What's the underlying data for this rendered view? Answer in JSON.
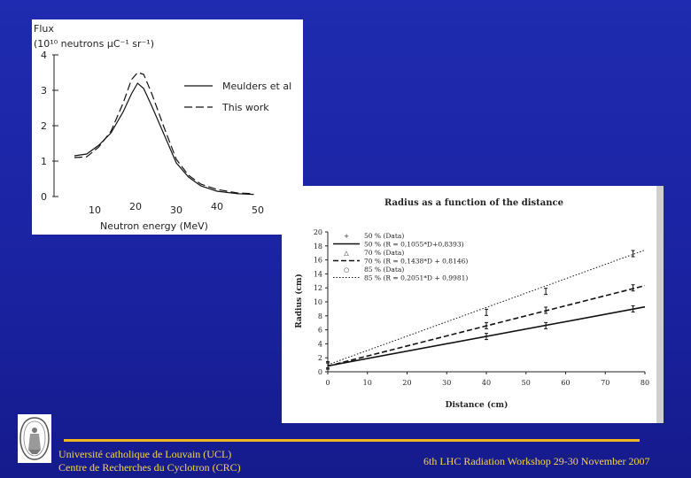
{
  "chart_data": [
    {
      "type": "line",
      "ylabel": "Flux",
      "ylabel_unit": "(10¹⁰ neutrons µC⁻¹ sr⁻¹)",
      "xlabel": "Neutron energy (MeV)",
      "xlim": [
        0,
        50
      ],
      "ylim": [
        0,
        4
      ],
      "xticks": [
        "10",
        "20",
        "30",
        "40",
        "50"
      ],
      "yticks": [
        "0",
        "1",
        "2",
        "3",
        "4"
      ],
      "legend_position": "upper-right",
      "series": [
        {
          "name": "Meulders et al",
          "style": "solid",
          "x": [
            5,
            8,
            11,
            14,
            17,
            19,
            20.5,
            22,
            24,
            27,
            30,
            33,
            36,
            40,
            45,
            49
          ],
          "y": [
            1.15,
            1.2,
            1.45,
            1.8,
            2.4,
            2.9,
            3.2,
            3.05,
            2.55,
            1.75,
            0.95,
            0.55,
            0.3,
            0.15,
            0.08,
            0.06
          ]
        },
        {
          "name": "This work",
          "style": "dashed",
          "x": [
            5,
            8,
            11,
            14,
            17,
            19,
            20.5,
            22,
            24,
            27,
            30,
            33,
            36,
            40,
            45,
            49
          ],
          "y": [
            1.1,
            1.12,
            1.4,
            1.85,
            2.65,
            3.3,
            3.5,
            3.45,
            2.9,
            1.95,
            1.05,
            0.6,
            0.35,
            0.2,
            0.1,
            0.08
          ]
        }
      ]
    },
    {
      "type": "line",
      "title": "Radius as a function of the distance",
      "xlabel": "Distance (cm)",
      "ylabel": "Radius (cm)",
      "xlim": [
        0,
        80
      ],
      "ylim": [
        0,
        20
      ],
      "xticks": [
        "0",
        "10",
        "20",
        "30",
        "40",
        "50",
        "60",
        "70",
        "80"
      ],
      "yticks": [
        "0",
        "2",
        "4",
        "6",
        "8",
        "10",
        "12",
        "14",
        "16",
        "18",
        "20"
      ],
      "legend_position": "upper-left",
      "legend": [
        "50 % (Data)",
        "50 % (R = 0,1055*D+0,8393)",
        "70 % (Data)",
        "70 % (R = 0,1438*D + 0,8146)",
        "85 % (Data)",
        "85 % (R = 0,2051*D + 0,9981)"
      ],
      "series": [
        {
          "name": "50 % (Data)",
          "kind": "points",
          "x": [
            0,
            40,
            55,
            77
          ],
          "y": [
            0.84,
            5.05,
            6.6,
            9.0
          ]
        },
        {
          "name": "50 % (R = 0,1055*D+0,8393)",
          "kind": "fit",
          "style": "solid",
          "slope": 0.1055,
          "intercept": 0.8393
        },
        {
          "name": "70 % (Data)",
          "kind": "points",
          "x": [
            0,
            40,
            55,
            77
          ],
          "y": [
            0.81,
            6.6,
            8.8,
            12.0
          ]
        },
        {
          "name": "70 % (R = 0,1438*D + 0,8146)",
          "kind": "fit",
          "style": "dashed",
          "slope": 0.1438,
          "intercept": 0.8146
        },
        {
          "name": "85 % (Data)",
          "kind": "points",
          "x": [
            0,
            40,
            55,
            77
          ],
          "y": [
            1.0,
            8.5,
            11.5,
            16.9
          ]
        },
        {
          "name": "85 % (R = 0,2051*D + 0,9981)",
          "kind": "fit",
          "style": "dotted",
          "slope": 0.2051,
          "intercept": 0.9981
        }
      ]
    }
  ],
  "footer": {
    "left_line1": "Université catholique de Louvain  (UCL)",
    "left_line2": "Centre de Recherches du Cyclotron (CRC)",
    "right": "6th LHC Radiation Workshop 29-30 November 2007"
  }
}
